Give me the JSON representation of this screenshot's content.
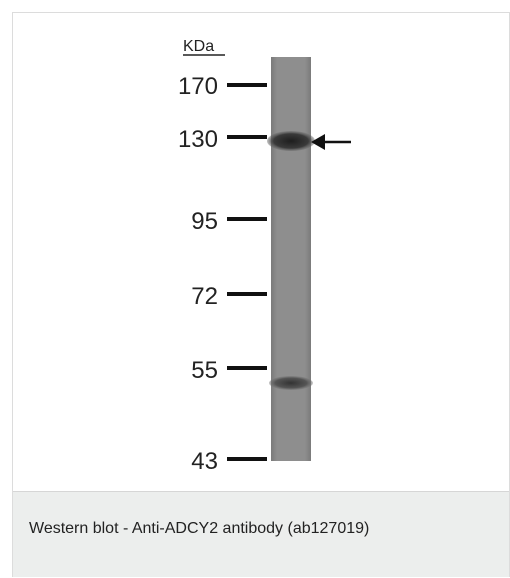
{
  "figure": {
    "unit_label": "KDa",
    "markers": [
      "170",
      "130",
      "95",
      "72",
      "55",
      "43"
    ],
    "arrow_marker": "130"
  },
  "caption": {
    "text": "Western blot - Anti-ADCY2 antibody (ab127019)"
  },
  "colors": {
    "caption_background": "#eceeed",
    "lane": "#8a8a8a",
    "band": "#2f2f2f",
    "text": "#222222"
  }
}
